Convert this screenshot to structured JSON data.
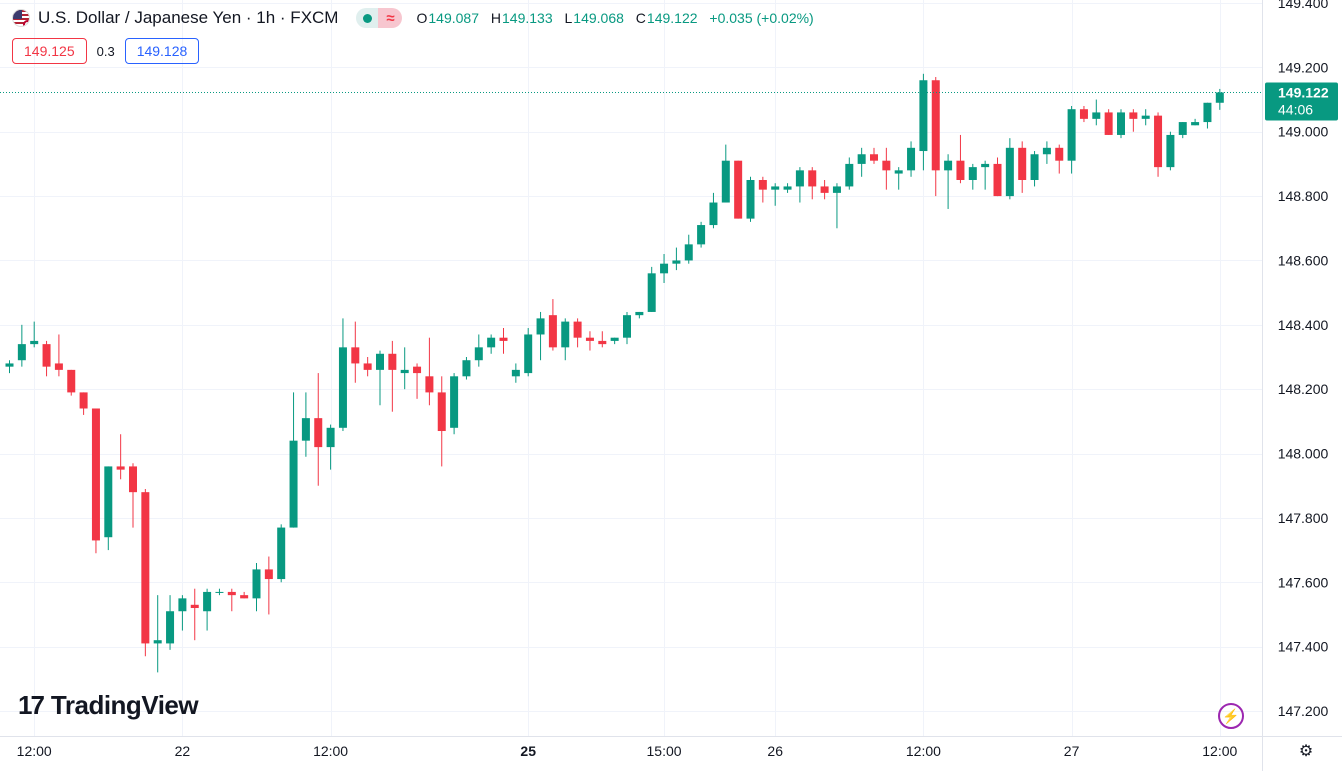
{
  "header": {
    "symbol_title": "U.S. Dollar / Japanese Yen · 1h · FXCM",
    "flag_icon": "us-jp-flag-icon",
    "ohlc": {
      "open_label": "O",
      "open": "149.087",
      "high_label": "H",
      "high": "149.133",
      "low_label": "L",
      "low": "149.068",
      "close_label": "C",
      "close": "149.122",
      "change": "+0.035 (+0.02%)"
    }
  },
  "quotes": {
    "sell": "149.125",
    "spread": "0.3",
    "buy": "149.128"
  },
  "logo": {
    "mark": "17",
    "text": "TradingView"
  },
  "price_label": {
    "price": "149.122",
    "countdown": "44:06"
  },
  "colors": {
    "up": "#089981",
    "down": "#f23645",
    "grid": "#f0f3fa",
    "axis_text": "#131722"
  },
  "chart_data": {
    "type": "candlestick",
    "title": "U.S. Dollar / Japanese Yen · 1h · FXCM",
    "ylim": [
      147.12,
      149.52
    ],
    "y_ticks": [
      147.2,
      147.4,
      147.6,
      147.8,
      148.0,
      148.2,
      148.4,
      148.6,
      148.8,
      149.0,
      149.2,
      149.4
    ],
    "y_tick_labels": [
      "147.200",
      "147.400",
      "147.600",
      "147.800",
      "148.000",
      "148.200",
      "148.400",
      "148.600",
      "148.800",
      "149.000",
      "149.200",
      "149.400"
    ],
    "x_tick_labels": [
      {
        "label": "12:00",
        "bar": 2,
        "bold": false
      },
      {
        "label": "22",
        "bar": 14,
        "bold": false
      },
      {
        "label": "12:00",
        "bar": 26,
        "bold": false
      },
      {
        "label": "25",
        "bar": 42,
        "bold": true
      },
      {
        "label": "15:00",
        "bar": 53,
        "bold": false
      },
      {
        "label": "26",
        "bar": 62,
        "bold": false
      },
      {
        "label": "12:00",
        "bar": 74,
        "bold": false
      },
      {
        "label": "27",
        "bar": 86,
        "bold": false
      },
      {
        "label": "12:00",
        "bar": 98,
        "bold": false
      }
    ],
    "last_price": 149.122,
    "candles": [
      [
        148.27,
        148.29,
        148.25,
        148.28
      ],
      [
        148.29,
        148.4,
        148.27,
        148.34
      ],
      [
        148.34,
        148.41,
        148.33,
        148.35
      ],
      [
        148.34,
        148.35,
        148.24,
        148.27
      ],
      [
        148.28,
        148.37,
        148.24,
        148.26
      ],
      [
        148.26,
        148.26,
        148.18,
        148.19
      ],
      [
        148.19,
        148.19,
        148.12,
        148.14
      ],
      [
        148.14,
        148.14,
        147.69,
        147.73
      ],
      [
        147.74,
        147.96,
        147.7,
        147.96
      ],
      [
        147.96,
        148.06,
        147.92,
        147.95
      ],
      [
        147.96,
        147.97,
        147.77,
        147.88
      ],
      [
        147.88,
        147.89,
        147.37,
        147.41
      ],
      [
        147.41,
        147.56,
        147.32,
        147.42
      ],
      [
        147.41,
        147.56,
        147.39,
        147.51
      ],
      [
        147.51,
        147.56,
        147.45,
        147.55
      ],
      [
        147.53,
        147.58,
        147.42,
        147.52
      ],
      [
        147.51,
        147.58,
        147.45,
        147.57
      ],
      [
        147.57,
        147.58,
        147.56,
        147.57
      ],
      [
        147.57,
        147.58,
        147.51,
        147.56
      ],
      [
        147.56,
        147.57,
        147.55,
        147.55
      ],
      [
        147.55,
        147.66,
        147.51,
        147.64
      ],
      [
        147.64,
        147.68,
        147.5,
        147.61
      ],
      [
        147.61,
        147.78,
        147.6,
        147.77
      ],
      [
        147.77,
        148.19,
        147.77,
        148.04
      ],
      [
        148.04,
        148.19,
        147.99,
        148.11
      ],
      [
        148.11,
        148.25,
        147.9,
        148.02
      ],
      [
        148.02,
        148.09,
        147.95,
        148.08
      ],
      [
        148.08,
        148.42,
        148.07,
        148.33
      ],
      [
        148.33,
        148.41,
        148.22,
        148.28
      ],
      [
        148.28,
        148.3,
        148.24,
        148.26
      ],
      [
        148.26,
        148.32,
        148.15,
        148.31
      ],
      [
        148.31,
        148.35,
        148.13,
        148.26
      ],
      [
        148.25,
        148.33,
        148.2,
        148.26
      ],
      [
        148.27,
        148.28,
        148.17,
        148.25
      ],
      [
        148.24,
        148.36,
        148.15,
        148.19
      ],
      [
        148.19,
        148.24,
        147.96,
        148.07
      ],
      [
        148.08,
        148.25,
        148.06,
        148.24
      ],
      [
        148.24,
        148.3,
        148.23,
        148.29
      ],
      [
        148.29,
        148.37,
        148.27,
        148.33
      ],
      [
        148.33,
        148.37,
        148.31,
        148.36
      ],
      [
        148.36,
        148.39,
        148.31,
        148.35
      ],
      [
        148.24,
        148.28,
        148.22,
        148.26
      ],
      [
        148.25,
        148.39,
        148.24,
        148.37
      ],
      [
        148.37,
        148.44,
        148.29,
        148.42
      ],
      [
        148.43,
        148.48,
        148.32,
        148.33
      ],
      [
        148.33,
        148.42,
        148.29,
        148.41
      ],
      [
        148.41,
        148.42,
        148.33,
        148.36
      ],
      [
        148.36,
        148.38,
        148.32,
        148.35
      ],
      [
        148.35,
        148.38,
        148.33,
        148.34
      ],
      [
        148.35,
        148.36,
        148.34,
        148.36
      ],
      [
        148.36,
        148.44,
        148.34,
        148.43
      ],
      [
        148.43,
        148.44,
        148.42,
        148.44
      ],
      [
        148.44,
        148.58,
        148.44,
        148.56
      ],
      [
        148.56,
        148.62,
        148.53,
        148.59
      ],
      [
        148.59,
        148.64,
        148.57,
        148.6
      ],
      [
        148.6,
        148.68,
        148.59,
        148.65
      ],
      [
        148.65,
        148.72,
        148.64,
        148.71
      ],
      [
        148.71,
        148.81,
        148.7,
        148.78
      ],
      [
        148.78,
        148.96,
        148.78,
        148.91
      ],
      [
        148.91,
        148.91,
        148.73,
        148.73
      ],
      [
        148.73,
        148.86,
        148.72,
        148.85
      ],
      [
        148.85,
        148.86,
        148.78,
        148.82
      ],
      [
        148.82,
        148.84,
        148.77,
        148.83
      ],
      [
        148.82,
        148.84,
        148.81,
        148.83
      ],
      [
        148.83,
        148.89,
        148.78,
        148.88
      ],
      [
        148.88,
        148.89,
        148.79,
        148.83
      ],
      [
        148.83,
        148.85,
        148.79,
        148.81
      ],
      [
        148.81,
        148.84,
        148.7,
        148.83
      ],
      [
        148.83,
        148.92,
        148.82,
        148.9
      ],
      [
        148.9,
        148.95,
        148.86,
        148.93
      ],
      [
        148.93,
        148.95,
        148.9,
        148.91
      ],
      [
        148.91,
        148.95,
        148.82,
        148.88
      ],
      [
        148.87,
        148.89,
        148.82,
        148.88
      ],
      [
        148.88,
        148.97,
        148.86,
        148.95
      ],
      [
        148.94,
        149.18,
        148.88,
        149.16
      ],
      [
        149.16,
        149.17,
        148.8,
        148.88
      ],
      [
        148.88,
        148.93,
        148.76,
        148.91
      ],
      [
        148.91,
        148.99,
        148.84,
        148.85
      ],
      [
        148.85,
        148.9,
        148.82,
        148.89
      ],
      [
        148.89,
        148.91,
        148.82,
        148.9
      ],
      [
        148.9,
        148.92,
        148.8,
        148.8
      ],
      [
        148.8,
        148.98,
        148.79,
        148.95
      ],
      [
        148.95,
        148.97,
        148.81,
        148.85
      ],
      [
        148.85,
        148.94,
        148.83,
        148.93
      ],
      [
        148.93,
        148.97,
        148.9,
        148.95
      ],
      [
        148.95,
        148.96,
        148.87,
        148.91
      ],
      [
        148.91,
        149.08,
        148.87,
        149.07
      ],
      [
        149.07,
        149.08,
        149.03,
        149.04
      ],
      [
        149.04,
        149.1,
        149.02,
        149.06
      ],
      [
        149.06,
        149.07,
        148.99,
        148.99
      ],
      [
        148.99,
        149.07,
        148.98,
        149.06
      ],
      [
        149.06,
        149.07,
        149.0,
        149.04
      ],
      [
        149.04,
        149.07,
        149.02,
        149.05
      ],
      [
        149.05,
        149.06,
        148.86,
        148.89
      ],
      [
        148.89,
        149.0,
        148.88,
        148.99
      ],
      [
        148.99,
        149.03,
        148.98,
        149.03
      ],
      [
        149.02,
        149.04,
        149.02,
        149.03
      ],
      [
        149.03,
        149.09,
        149.01,
        149.09
      ],
      [
        149.09,
        149.133,
        149.068,
        149.122
      ]
    ]
  }
}
